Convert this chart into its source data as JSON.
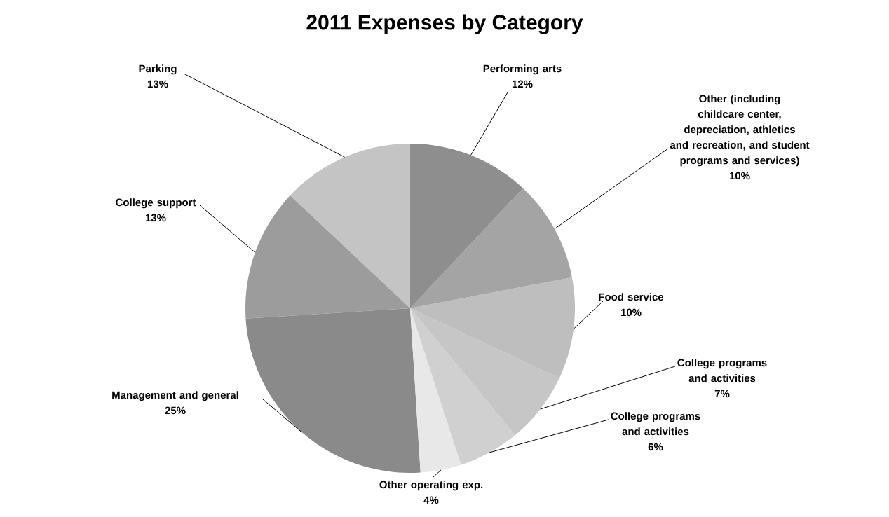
{
  "chart_data": {
    "type": "pie",
    "title": "2011 Expenses by Category",
    "categories": [
      "Performing arts",
      "Other (including childcare center, depreciation, athletics and recreation, and student programs and services)",
      "Food service",
      "College programs and activities",
      "College programs and activities",
      "Other operating exp.",
      "Management and general",
      "College support",
      "Parking"
    ],
    "values": [
      12,
      10,
      10,
      7,
      6,
      4,
      25,
      13,
      13
    ],
    "value_labels": [
      "12%",
      "10%",
      "10%",
      "7%",
      "6%",
      "4%",
      "25%",
      "13%",
      "13%"
    ],
    "colors": [
      "#8e8e8e",
      "#a4a4a4",
      "#bebebe",
      "#c6c6c6",
      "#d0d0d0",
      "#e8e8e8",
      "#8a8a8a",
      "#9c9c9c",
      "#c4c4c4"
    ]
  }
}
